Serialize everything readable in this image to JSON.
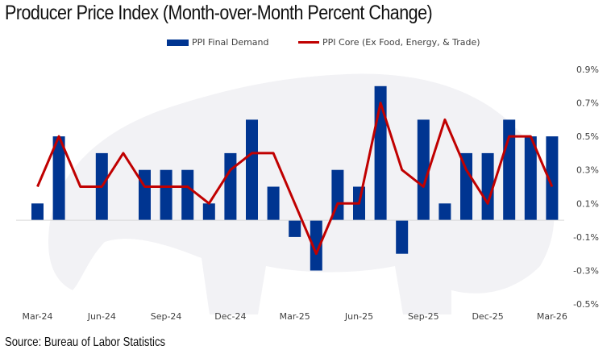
{
  "title": "Producer Price Index (Month-over-Month Percent Change)",
  "source": "Source: Bureau of Labor Statistics",
  "colors": {
    "bar": "#003591",
    "line": "#c00000",
    "watermark": "#f2f2f5",
    "baseline": "#d9d9d9"
  },
  "chart_data": {
    "type": "bar",
    "title": "Producer Price Index (Month-over-Month Percent Change)",
    "xlabel": "",
    "ylabel": "",
    "ylim": [
      -0.5,
      0.9
    ],
    "yticks": [
      0.9,
      0.7,
      0.5,
      0.3,
      0.1,
      -0.1,
      -0.3,
      -0.5
    ],
    "ytick_labels": [
      "0.9%",
      "0.7%",
      "0.5%",
      "0.3%",
      "0.1%",
      "-0.1%",
      "-0.3%",
      "-0.5%"
    ],
    "yaxis_side": "right",
    "grid": false,
    "legend_position": "top-center",
    "categories": [
      "Mar-24",
      "Apr-24",
      "May-24",
      "Jun-24",
      "Jul-24",
      "Aug-24",
      "Sep-24",
      "Oct-24",
      "Nov-24",
      "Dec-24",
      "Jan-25",
      "Feb-25",
      "Mar-25",
      "Apr-25",
      "May-25",
      "Jun-25",
      "Jul-25",
      "Aug-25",
      "Sep-25",
      "Oct-25",
      "Nov-25",
      "Dec-25",
      "Jan-26",
      "Feb-26",
      "Mar-26"
    ],
    "xtick_labels": [
      "Mar-24",
      "Jun-24",
      "Sep-24",
      "Dec-24",
      "Mar-25",
      "Jun-25",
      "Sep-25",
      "Dec-25",
      "Mar-26"
    ],
    "series": [
      {
        "name": "PPI Final Demand",
        "type": "bar",
        "values": [
          0.1,
          0.5,
          0.0,
          0.4,
          0.0,
          0.3,
          0.3,
          0.3,
          0.1,
          0.4,
          0.6,
          0.2,
          -0.1,
          -0.3,
          0.3,
          0.2,
          0.8,
          -0.2,
          0.6,
          0.1,
          0.4,
          0.4,
          0.6,
          0.5,
          0.5
        ]
      },
      {
        "name": "PPI Core (Ex Food, Energy, & Trade)",
        "type": "line",
        "values": [
          0.2,
          0.5,
          0.2,
          0.2,
          0.4,
          0.2,
          0.2,
          0.2,
          0.1,
          0.3,
          0.4,
          0.4,
          0.1,
          -0.2,
          0.1,
          0.1,
          0.7,
          0.3,
          0.2,
          0.6,
          0.3,
          0.1,
          0.5,
          0.5,
          0.2
        ]
      }
    ]
  }
}
